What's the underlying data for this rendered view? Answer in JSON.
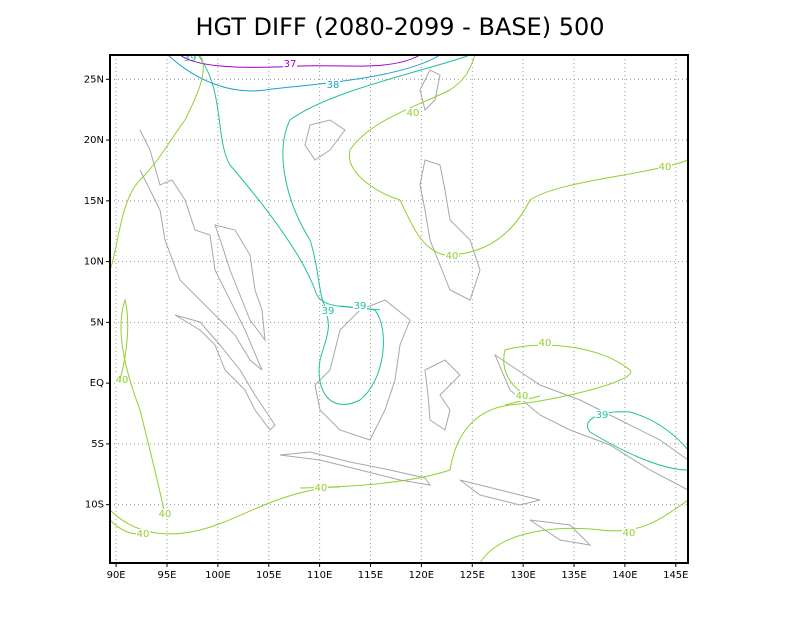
{
  "chart_data": {
    "type": "contour",
    "title": "HGT DIFF (2080-2099 - BASE) 500",
    "xlim": [
      89.4,
      146.2
    ],
    "ylim": [
      -14.8,
      27
    ],
    "xticks": [
      {
        "value": 90,
        "label": "90E"
      },
      {
        "value": 95,
        "label": "95E"
      },
      {
        "value": 100,
        "label": "100E"
      },
      {
        "value": 105,
        "label": "105E"
      },
      {
        "value": 110,
        "label": "110E"
      },
      {
        "value": 115,
        "label": "115E"
      },
      {
        "value": 120,
        "label": "120E"
      },
      {
        "value": 125,
        "label": "125E"
      },
      {
        "value": 130,
        "label": "130E"
      },
      {
        "value": 135,
        "label": "135E"
      },
      {
        "value": 140,
        "label": "140E"
      },
      {
        "value": 145,
        "label": "145E"
      }
    ],
    "yticks": [
      {
        "value": 25,
        "label": "25N"
      },
      {
        "value": 20,
        "label": "20N"
      },
      {
        "value": 15,
        "label": "15N"
      },
      {
        "value": 10,
        "label": "10N"
      },
      {
        "value": 5,
        "label": "5N"
      },
      {
        "value": 0,
        "label": "EQ"
      },
      {
        "value": -5,
        "label": "5S"
      },
      {
        "value": -10,
        "label": "10S"
      }
    ],
    "grid": true,
    "contour_levels": [
      39,
      37,
      38,
      40,
      40,
      40,
      39,
      39,
      40,
      40,
      40,
      39,
      40,
      40,
      40,
      40
    ],
    "contour_colors": [
      "#20c0a0",
      "#a000c8",
      "#1ea0d0",
      "#90d030",
      "#90d030",
      "#90d030",
      "#20c0a0",
      "#20c0a0",
      "#90d030",
      "#90d030",
      "#90d030",
      "#20c0a0",
      "#90d030",
      "#90d030",
      "#90d030",
      "#90d030"
    ]
  }
}
